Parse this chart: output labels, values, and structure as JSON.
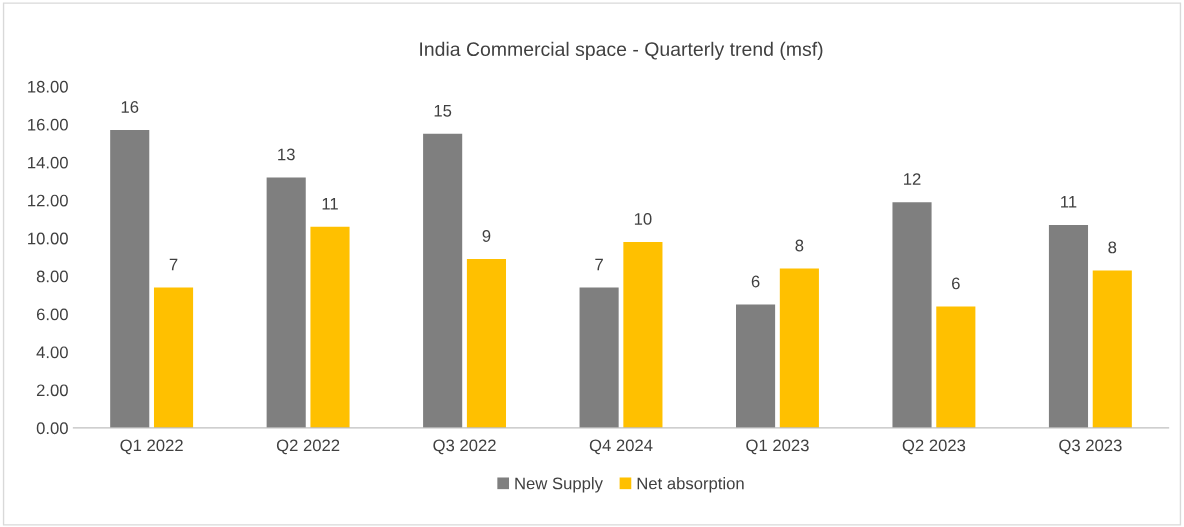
{
  "chart_data": {
    "type": "bar",
    "title": "India Commercial space - Quarterly trend (msf)",
    "categories": [
      "Q1 2022",
      "Q2 2022",
      "Q3 2022",
      "Q4 2024",
      "Q1 2023",
      "Q2 2023",
      "Q3 2023"
    ],
    "series": [
      {
        "name": "New Supply",
        "color": "#7f7f7f",
        "values": [
          15.7,
          13.2,
          15.5,
          7.4,
          6.5,
          11.9,
          10.7
        ],
        "value_labels": [
          "16",
          "13",
          "15",
          "7",
          "6",
          "12",
          "11"
        ]
      },
      {
        "name": "Net absorption",
        "color": "#ffc000",
        "values": [
          7.4,
          10.6,
          8.9,
          9.8,
          8.4,
          6.4,
          8.3
        ],
        "value_labels": [
          "7",
          "11",
          "9",
          "10",
          "8",
          "6",
          "8"
        ]
      }
    ],
    "ylim": [
      0,
      18
    ],
    "yticks": [
      {
        "value": 0,
        "label": "0.00"
      },
      {
        "value": 2,
        "label": "2.00"
      },
      {
        "value": 4,
        "label": "4.00"
      },
      {
        "value": 6,
        "label": "6.00"
      },
      {
        "value": 8,
        "label": "8.00"
      },
      {
        "value": 10,
        "label": "10.00"
      },
      {
        "value": 12,
        "label": "12.00"
      },
      {
        "value": 14,
        "label": "14.00"
      },
      {
        "value": 16,
        "label": "16.00"
      },
      {
        "value": 18,
        "label": "18.00"
      }
    ],
    "grid": false,
    "legend": "bottom"
  }
}
